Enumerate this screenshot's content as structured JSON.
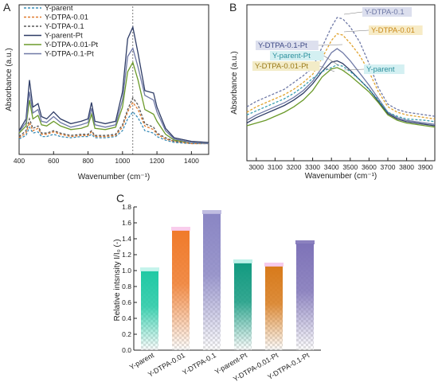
{
  "panels": {
    "a": "A",
    "b": "B",
    "c": "C"
  },
  "chart_data": [
    {
      "panel": "A",
      "type": "line",
      "xlabel": "Wavenumber (cm⁻¹)",
      "ylabel": "Absorbance (a.u.)",
      "xlim": [
        400,
        1500
      ],
      "xticks": [
        "400",
        "600",
        "800",
        "1000",
        "1200",
        "1400"
      ],
      "x": [
        400,
        440,
        460,
        480,
        510,
        530,
        560,
        600,
        640,
        700,
        760,
        800,
        820,
        840,
        900,
        960,
        1000,
        1030,
        1060,
        1090,
        1130,
        1180,
        1200,
        1250,
        1300,
        1400,
        1500
      ],
      "vline_x": 1060,
      "legend_position": "top-left",
      "series": [
        {
          "name": "Y-parent",
          "color": "#3a8db8",
          "dash": true,
          "values": [
            0.05,
            0.08,
            0.15,
            0.1,
            0.11,
            0.07,
            0.07,
            0.09,
            0.07,
            0.06,
            0.07,
            0.07,
            0.09,
            0.06,
            0.06,
            0.07,
            0.12,
            0.22,
            0.28,
            0.23,
            0.12,
            0.1,
            0.07,
            0.04,
            0.02,
            0.01,
            0.01
          ]
        },
        {
          "name": "Y-DTPA-0.01",
          "color": "#e07b2e",
          "dash": true,
          "values": [
            0.06,
            0.1,
            0.19,
            0.12,
            0.14,
            0.09,
            0.09,
            0.11,
            0.09,
            0.07,
            0.08,
            0.08,
            0.11,
            0.07,
            0.07,
            0.08,
            0.15,
            0.28,
            0.36,
            0.3,
            0.16,
            0.13,
            0.09,
            0.05,
            0.03,
            0.01,
            0.01
          ]
        },
        {
          "name": "Y-DTPA-0.1",
          "color": "#5a5a5a",
          "dash": true,
          "values": [
            0.07,
            0.12,
            0.22,
            0.14,
            0.16,
            0.1,
            0.1,
            0.12,
            0.1,
            0.08,
            0.09,
            0.09,
            0.12,
            0.08,
            0.08,
            0.09,
            0.17,
            0.3,
            0.4,
            0.34,
            0.18,
            0.15,
            0.1,
            0.06,
            0.03,
            0.02,
            0.01
          ]
        },
        {
          "name": "Y-parent-Pt",
          "color": "#2e3c66",
          "dash": false,
          "values": [
            0.12,
            0.22,
            0.55,
            0.32,
            0.35,
            0.24,
            0.22,
            0.28,
            0.22,
            0.18,
            0.2,
            0.22,
            0.36,
            0.2,
            0.18,
            0.2,
            0.45,
            0.9,
            1.0,
            0.78,
            0.46,
            0.44,
            0.32,
            0.14,
            0.06,
            0.03,
            0.02
          ]
        },
        {
          "name": "Y-DTPA-0.01-Pt",
          "color": "#6b9a2a",
          "dash": false,
          "values": [
            0.1,
            0.16,
            0.38,
            0.22,
            0.25,
            0.17,
            0.16,
            0.2,
            0.16,
            0.13,
            0.14,
            0.16,
            0.26,
            0.14,
            0.13,
            0.15,
            0.32,
            0.62,
            0.7,
            0.55,
            0.3,
            0.26,
            0.2,
            0.09,
            0.04,
            0.02,
            0.01
          ]
        },
        {
          "name": "Y-DTPA-0.1-Pt",
          "color": "#6f79a6",
          "dash": false,
          "values": [
            0.11,
            0.19,
            0.45,
            0.27,
            0.3,
            0.2,
            0.19,
            0.24,
            0.19,
            0.15,
            0.17,
            0.19,
            0.31,
            0.17,
            0.15,
            0.17,
            0.38,
            0.75,
            0.82,
            0.66,
            0.42,
            0.38,
            0.28,
            0.12,
            0.05,
            0.02,
            0.01
          ]
        }
      ]
    },
    {
      "panel": "B",
      "type": "line",
      "xlabel": "Wavenumber (cm⁻¹)",
      "ylabel": "Absorbance (a.u.)",
      "xlim": [
        2950,
        3950
      ],
      "xticks": [
        "3000",
        "3100",
        "3200",
        "3300",
        "3400",
        "3500",
        "3600",
        "3700",
        "3800",
        "3900"
      ],
      "x": [
        2950,
        3000,
        3050,
        3100,
        3150,
        3200,
        3250,
        3300,
        3350,
        3400,
        3430,
        3460,
        3500,
        3550,
        3600,
        3650,
        3700,
        3750,
        3800,
        3900,
        3950
      ],
      "series": [
        {
          "name": "Y-DTPA-0.1",
          "color": "#6f79a6",
          "dash": true,
          "values": [
            0.34,
            0.38,
            0.41,
            0.44,
            0.47,
            0.52,
            0.57,
            0.63,
            0.78,
            0.93,
            1.0,
            0.99,
            0.93,
            0.82,
            0.66,
            0.48,
            0.36,
            0.32,
            0.3,
            0.28,
            0.27
          ]
        },
        {
          "name": "Y-DTPA-0.01",
          "color": "#e0a32e",
          "dash": true,
          "values": [
            0.3,
            0.34,
            0.37,
            0.4,
            0.43,
            0.47,
            0.52,
            0.58,
            0.7,
            0.83,
            0.88,
            0.87,
            0.81,
            0.72,
            0.6,
            0.45,
            0.34,
            0.3,
            0.28,
            0.26,
            0.25
          ]
        },
        {
          "name": "Y-DTPA-0.1-Pt",
          "color": "#6f79a6",
          "dash": false,
          "values": [
            0.24,
            0.28,
            0.31,
            0.34,
            0.37,
            0.41,
            0.46,
            0.53,
            0.63,
            0.74,
            0.77,
            0.74,
            0.68,
            0.59,
            0.5,
            0.4,
            0.3,
            0.26,
            0.24,
            0.22,
            0.21
          ]
        },
        {
          "name": "Y-parent-Pt",
          "color": "#2e3c66",
          "dash": false,
          "values": [
            0.22,
            0.26,
            0.29,
            0.32,
            0.35,
            0.39,
            0.44,
            0.51,
            0.6,
            0.67,
            0.68,
            0.66,
            0.61,
            0.54,
            0.47,
            0.38,
            0.29,
            0.25,
            0.23,
            0.21,
            0.2
          ]
        },
        {
          "name": "Y-DTPA-0.01-Pt",
          "color": "#6b9a2a",
          "dash": false,
          "values": [
            0.2,
            0.22,
            0.24,
            0.27,
            0.3,
            0.34,
            0.39,
            0.46,
            0.56,
            0.62,
            0.63,
            0.61,
            0.57,
            0.51,
            0.45,
            0.37,
            0.28,
            0.24,
            0.22,
            0.2,
            0.19
          ]
        },
        {
          "name": "Y-parent",
          "color": "#3a9fb0",
          "dash": true,
          "values": [
            0.28,
            0.31,
            0.34,
            0.37,
            0.4,
            0.44,
            0.49,
            0.55,
            0.6,
            0.63,
            0.65,
            0.64,
            0.6,
            0.54,
            0.47,
            0.39,
            0.3,
            0.27,
            0.25,
            0.24,
            0.23
          ]
        }
      ],
      "labels": [
        {
          "text": "Y-DTPA-0.1",
          "color": "#6f79a6",
          "bg": "#dcdfee"
        },
        {
          "text": "Y-DTPA-0.01",
          "color": "#c98a1c",
          "bg": "#f7ebc6"
        },
        {
          "text": "Y-DTPA-0.1-Pt",
          "color": "#3f4a86",
          "bg": "#dde0ee"
        },
        {
          "text": "Y-parent-Pt",
          "color": "#2a8f9c",
          "bg": "#d4f0f2"
        },
        {
          "text": "Y-DTPA-0.01-Pt",
          "color": "#9a7a18",
          "bg": "#f3ecc8"
        },
        {
          "text": "Y-parent",
          "color": "#2a8f9c",
          "bg": "#d4f0f2"
        }
      ]
    },
    {
      "panel": "C",
      "type": "bar",
      "ylabel": "Relative intsnsity I/I₀ (-)",
      "ylim": [
        0,
        1.8
      ],
      "yticks": [
        "0.0",
        "0.2",
        "0.4",
        "0.6",
        "0.8",
        "1.0",
        "1.2",
        "1.4",
        "1.6",
        "1.8"
      ],
      "categories": [
        "Y-parent",
        "Y-DTPA-0.01",
        "Y-DTPA-0.1",
        "Y-parent-Pt",
        "Y-DTPA-0.01-Pt",
        "Y-DTPA-0.1-Pt"
      ],
      "values": [
        1.0,
        1.51,
        1.72,
        1.1,
        1.06,
        1.34
      ],
      "colors": [
        "#1fc9a4",
        "#f07a2a",
        "#8a86c4",
        "#129a80",
        "#d87a1a",
        "#7e73b8"
      ],
      "cap_colors": [
        "#bff3ea",
        "#f8c8ea",
        "#b9b6de",
        "#b6efe5",
        "#f5c5ea",
        "#7e73b8"
      ]
    }
  ]
}
